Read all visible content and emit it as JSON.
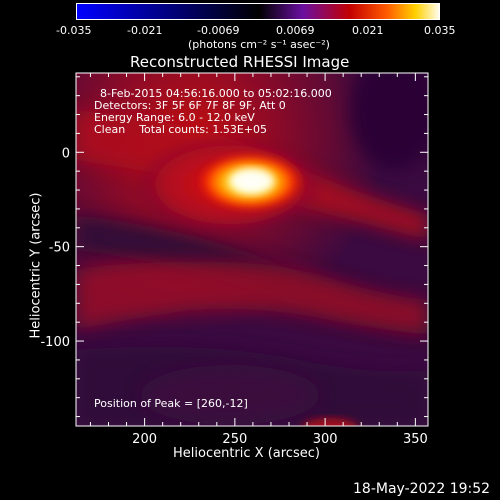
{
  "chart_data": {
    "type": "heatmap",
    "title": "Reconstructed RHESSI Image",
    "xlabel": "Heliocentric X (arcsec)",
    "ylabel": "Heliocentric Y (arcsec)",
    "xlim": [
      162,
      357
    ],
    "ylim": [
      -145,
      42
    ],
    "x_ticks": [
      200,
      250,
      300,
      350
    ],
    "y_ticks": [
      0,
      -50,
      -100
    ],
    "colorbar": {
      "label": "(photons cm⁻² s⁻¹ asec⁻²)",
      "min": -0.035,
      "max": 0.035,
      "ticks": [
        "-0.035",
        "-0.021",
        "-0.0069",
        "0.0069",
        "0.021",
        "0.035"
      ],
      "colormap": [
        "#0000ff",
        "#000000",
        "#6a0fa0",
        "#c40000",
        "#ff5a00",
        "#ffd000",
        "#ffffff"
      ]
    },
    "annotations": [
      "8-Feb-2015 04:56:16.000 to 05:02:16.000",
      "Detectors: 3F 5F 6F 7F 8F 9F, Att 0",
      "Energy Range: 6.0 - 12.0 keV",
      "Clean    Total counts: 1.53E+05",
      "Position of Peak = [260,-12]"
    ],
    "peak": {
      "x": 260,
      "y": -12
    },
    "timestamp": "18-May-2022 19:52"
  }
}
